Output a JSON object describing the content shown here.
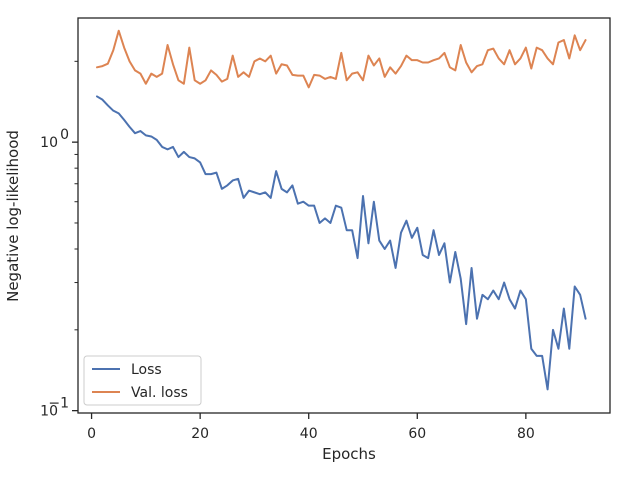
{
  "chart_data": {
    "type": "line",
    "title": "",
    "xlabel": "Epochs",
    "ylabel": "Negative log-likelihood",
    "yscale": "log",
    "xlim": [
      -2.5,
      95.5
    ],
    "ylim": [
      0.098,
      2.9
    ],
    "xticks": [
      0,
      20,
      40,
      60,
      80
    ],
    "xtick_labels": [
      "0",
      "20",
      "40",
      "60",
      "80"
    ],
    "yticks": [
      0.1,
      1
    ],
    "ytick_labels": [
      {
        "base": "10",
        "exp": "−1"
      },
      {
        "base": "10",
        "exp": "0"
      }
    ],
    "grid": false,
    "legend_position": "lower-left",
    "x": [
      1,
      2,
      3,
      4,
      5,
      6,
      7,
      8,
      9,
      10,
      11,
      12,
      13,
      14,
      15,
      16,
      17,
      18,
      19,
      20,
      21,
      22,
      23,
      24,
      25,
      26,
      27,
      28,
      29,
      30,
      31,
      32,
      33,
      34,
      35,
      36,
      37,
      38,
      39,
      40,
      41,
      42,
      43,
      44,
      45,
      46,
      47,
      48,
      49,
      50,
      51,
      52,
      53,
      54,
      55,
      56,
      57,
      58,
      59,
      60,
      61,
      62,
      63,
      64,
      65,
      66,
      67,
      68,
      69,
      70,
      71,
      72,
      73,
      74,
      75,
      76,
      77,
      78,
      79,
      80,
      81,
      82,
      83,
      84,
      85,
      86,
      87,
      88,
      89,
      90,
      91
    ],
    "series": [
      {
        "name": "Loss",
        "color": "#4c72b0",
        "values": [
          1.48,
          1.44,
          1.37,
          1.31,
          1.28,
          1.21,
          1.14,
          1.08,
          1.1,
          1.06,
          1.05,
          1.02,
          0.96,
          0.94,
          0.96,
          0.88,
          0.92,
          0.88,
          0.87,
          0.84,
          0.76,
          0.76,
          0.77,
          0.67,
          0.69,
          0.72,
          0.73,
          0.62,
          0.66,
          0.65,
          0.64,
          0.65,
          0.62,
          0.78,
          0.67,
          0.65,
          0.69,
          0.59,
          0.6,
          0.58,
          0.58,
          0.5,
          0.52,
          0.5,
          0.58,
          0.57,
          0.47,
          0.47,
          0.37,
          0.63,
          0.42,
          0.6,
          0.43,
          0.4,
          0.43,
          0.34,
          0.46,
          0.51,
          0.44,
          0.48,
          0.38,
          0.37,
          0.47,
          0.38,
          0.42,
          0.3,
          0.39,
          0.31,
          0.21,
          0.34,
          0.22,
          0.27,
          0.26,
          0.28,
          0.26,
          0.3,
          0.26,
          0.24,
          0.28,
          0.26,
          0.17,
          0.16,
          0.16,
          0.12,
          0.2,
          0.17,
          0.24,
          0.17,
          0.29,
          0.27,
          0.22
        ]
      },
      {
        "name": "Val. loss",
        "color": "#dd8452",
        "values": [
          1.9,
          1.92,
          1.96,
          2.2,
          2.6,
          2.25,
          2.0,
          1.85,
          1.8,
          1.65,
          1.8,
          1.75,
          1.8,
          2.3,
          1.95,
          1.7,
          1.65,
          2.25,
          1.7,
          1.65,
          1.7,
          1.85,
          1.78,
          1.68,
          1.72,
          2.1,
          1.75,
          1.82,
          1.75,
          2.0,
          2.05,
          2.0,
          2.1,
          1.8,
          1.95,
          1.93,
          1.78,
          1.77,
          1.77,
          1.6,
          1.78,
          1.77,
          1.72,
          1.75,
          1.72,
          2.15,
          1.7,
          1.8,
          1.82,
          1.7,
          2.1,
          1.93,
          2.05,
          1.75,
          1.9,
          1.8,
          1.92,
          2.1,
          2.02,
          2.02,
          1.98,
          1.98,
          2.02,
          2.05,
          2.15,
          1.9,
          1.85,
          2.3,
          1.98,
          1.82,
          1.92,
          1.95,
          2.2,
          2.23,
          2.05,
          1.95,
          2.2,
          1.95,
          2.05,
          2.25,
          1.88,
          2.25,
          2.2,
          2.05,
          1.95,
          2.35,
          2.4,
          2.05,
          2.5,
          2.2,
          2.4
        ]
      }
    ]
  }
}
